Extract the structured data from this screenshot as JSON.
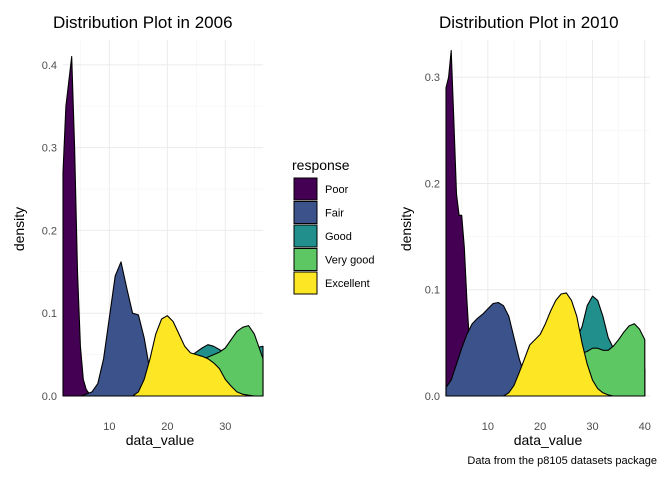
{
  "legend": {
    "title": "response",
    "entries": [
      {
        "name": "Poor",
        "color": "#440154"
      },
      {
        "name": "Fair",
        "color": "#3B528B"
      },
      {
        "name": "Good",
        "color": "#21908C"
      },
      {
        "name": "Very good",
        "color": "#5DC863"
      },
      {
        "name": "Excellent",
        "color": "#FDE725"
      }
    ]
  },
  "caption": "Data from the p8105 datasets package",
  "chart_data": [
    {
      "type": "area",
      "title": "Distribution Plot in 2006",
      "xlabel": "data_value",
      "ylabel": "density",
      "xlim": [
        2,
        36.5
      ],
      "ylim": [
        0,
        0.43
      ],
      "xticks": [
        10,
        20,
        30
      ],
      "yticks": [
        0.0,
        0.1,
        0.2,
        0.3,
        0.4
      ],
      "ytick_labels": [
        "0.0",
        "0.1",
        "0.2",
        "0.3",
        "0.4"
      ],
      "grid": true,
      "series": [
        {
          "name": "Poor",
          "x": [
            2,
            2.5,
            3,
            3.5,
            4,
            4.5,
            5,
            5.5,
            6,
            6.5,
            7,
            7.5,
            8,
            9
          ],
          "y": [
            0.27,
            0.35,
            0.38,
            0.41,
            0.3,
            0.15,
            0.06,
            0.02,
            0.008,
            0.003,
            0.001,
            0.0005,
            0,
            0
          ]
        },
        {
          "name": "Fair",
          "x": [
            5,
            6,
            7,
            8,
            9,
            10,
            11,
            12,
            13,
            14,
            15,
            16,
            17,
            18,
            19,
            20,
            21,
            22
          ],
          "y": [
            0,
            0.002,
            0.005,
            0.015,
            0.045,
            0.095,
            0.145,
            0.162,
            0.13,
            0.1,
            0.098,
            0.07,
            0.03,
            0.013,
            0.006,
            0.002,
            0.001,
            0
          ]
        },
        {
          "name": "Good",
          "x": [
            22,
            23,
            24,
            25,
            26,
            27,
            28,
            29,
            30,
            31,
            32,
            33,
            34,
            35,
            36.5
          ],
          "y": [
            0.035,
            0.042,
            0.048,
            0.053,
            0.058,
            0.062,
            0.06,
            0.056,
            0.052,
            0.05,
            0.05,
            0.052,
            0.055,
            0.058,
            0.06
          ]
        },
        {
          "name": "Very good",
          "x": [
            23,
            24,
            25,
            26,
            27,
            28,
            29,
            30,
            31,
            32,
            33,
            34,
            35,
            36,
            36.5
          ],
          "y": [
            0.035,
            0.04,
            0.043,
            0.045,
            0.047,
            0.05,
            0.053,
            0.058,
            0.068,
            0.078,
            0.083,
            0.085,
            0.075,
            0.055,
            0.045
          ]
        },
        {
          "name": "Excellent",
          "x": [
            14,
            15,
            16,
            17,
            18,
            19,
            20,
            21,
            22,
            23,
            24,
            25,
            26,
            27,
            28,
            29,
            30,
            31,
            32,
            33,
            34,
            35,
            36.5
          ],
          "y": [
            0,
            0.005,
            0.02,
            0.045,
            0.075,
            0.093,
            0.097,
            0.09,
            0.075,
            0.06,
            0.052,
            0.05,
            0.048,
            0.045,
            0.04,
            0.033,
            0.02,
            0.012,
            0.005,
            0.002,
            0.001,
            0,
            0
          ]
        }
      ]
    },
    {
      "type": "area",
      "title": "Distribution Plot in 2010",
      "xlabel": "data_value",
      "ylabel": "density",
      "xlim": [
        2,
        41
      ],
      "ylim": [
        0,
        0.335
      ],
      "xticks": [
        10,
        20,
        30,
        40
      ],
      "yticks": [
        0.0,
        0.1,
        0.2,
        0.3
      ],
      "ytick_labels": [
        "0.0",
        "0.1",
        "0.2",
        "0.3"
      ],
      "grid": true,
      "series": [
        {
          "name": "Poor",
          "x": [
            2,
            2.5,
            3,
            3.5,
            4,
            4.5,
            5,
            5.5,
            6,
            6.5,
            7,
            7.5,
            8,
            9,
            10
          ],
          "y": [
            0.29,
            0.3,
            0.325,
            0.26,
            0.19,
            0.17,
            0.17,
            0.14,
            0.09,
            0.05,
            0.025,
            0.01,
            0.005,
            0.001,
            0
          ]
        },
        {
          "name": "Fair",
          "x": [
            2,
            3,
            4,
            5,
            6,
            7,
            8,
            9,
            10,
            11,
            12,
            13,
            14,
            15,
            16,
            17,
            18,
            19,
            20,
            21
          ],
          "y": [
            0.008,
            0.015,
            0.03,
            0.045,
            0.058,
            0.068,
            0.073,
            0.077,
            0.082,
            0.087,
            0.088,
            0.085,
            0.075,
            0.055,
            0.035,
            0.02,
            0.01,
            0.005,
            0.002,
            0
          ]
        },
        {
          "name": "Good",
          "x": [
            25,
            26,
            27,
            28,
            29,
            30,
            31,
            32,
            33,
            34,
            35,
            36,
            37,
            38,
            39,
            40
          ],
          "y": [
            0.05,
            0.052,
            0.055,
            0.065,
            0.085,
            0.094,
            0.09,
            0.075,
            0.055,
            0.045,
            0.042,
            0.04,
            0.038,
            0.035,
            0.03,
            0.025
          ]
        },
        {
          "name": "Very good",
          "x": [
            28,
            29,
            30,
            31,
            32,
            33,
            34,
            35,
            36,
            37,
            38,
            39,
            40
          ],
          "y": [
            0.04,
            0.042,
            0.045,
            0.045,
            0.043,
            0.043,
            0.047,
            0.053,
            0.06,
            0.066,
            0.068,
            0.063,
            0.053
          ]
        },
        {
          "name": "Excellent",
          "x": [
            13,
            14,
            15,
            16,
            17,
            18,
            19,
            20,
            21,
            22,
            23,
            24,
            25,
            26,
            27,
            28,
            29,
            30,
            31,
            32,
            33,
            34
          ],
          "y": [
            0,
            0.003,
            0.01,
            0.022,
            0.035,
            0.048,
            0.053,
            0.058,
            0.068,
            0.08,
            0.09,
            0.096,
            0.097,
            0.09,
            0.075,
            0.05,
            0.03,
            0.015,
            0.007,
            0.003,
            0.001,
            0
          ]
        }
      ]
    }
  ]
}
